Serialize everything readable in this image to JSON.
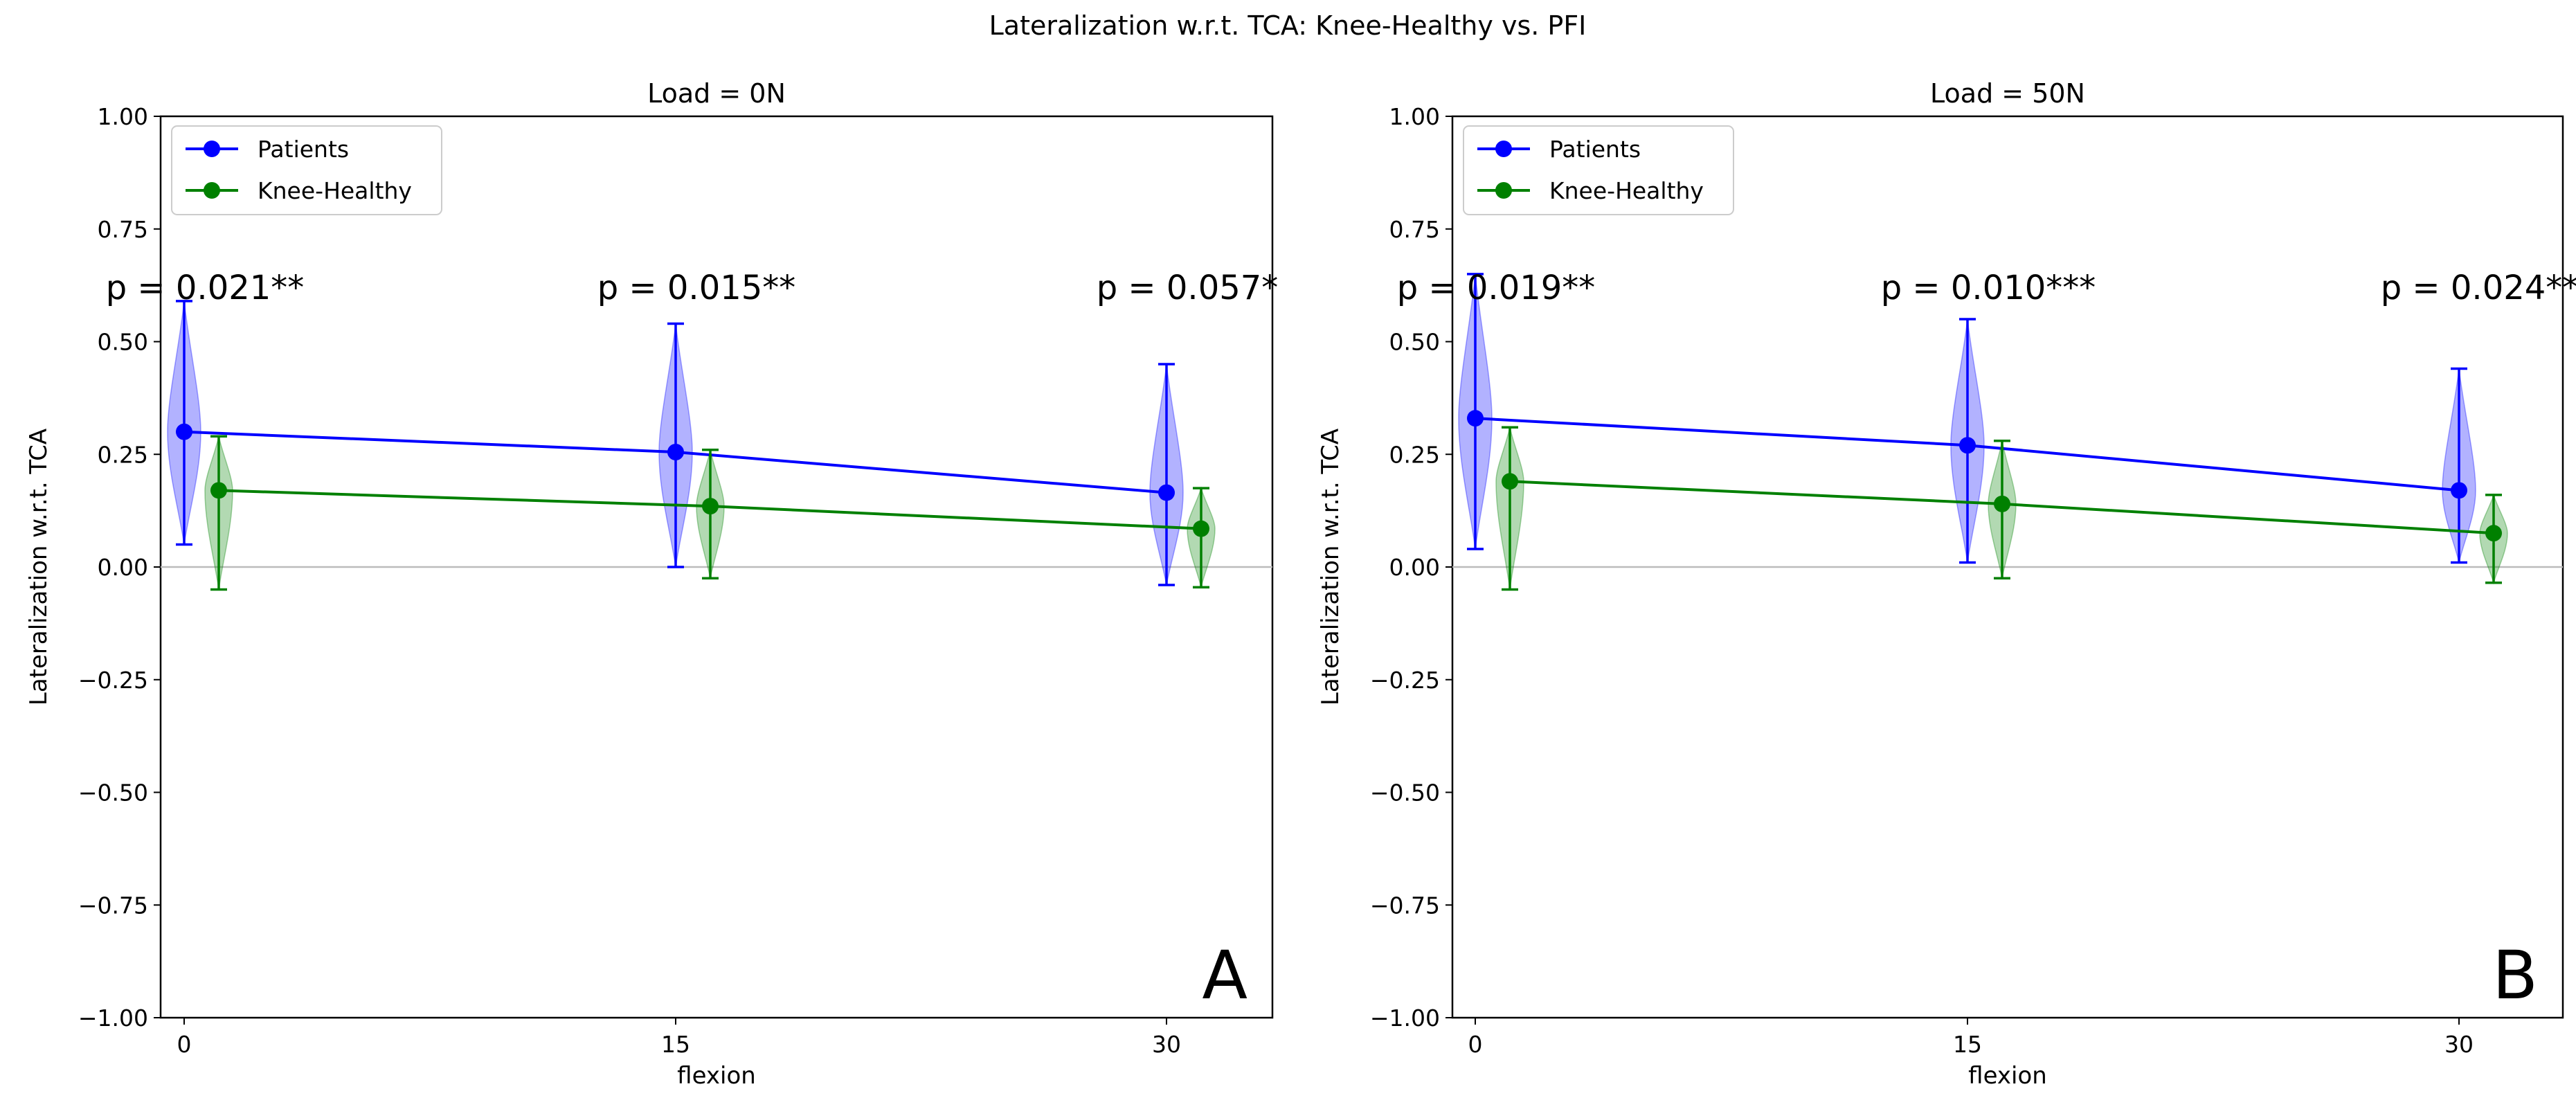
{
  "figure": {
    "suptitle": "Lateralization w.r.t. TCA: Knee-Healthy vs. PFI"
  },
  "colors": {
    "patients": "#0000ff",
    "healthy": "#008000",
    "zero_line": "#bbbbbb"
  },
  "chart_data": [
    {
      "type": "line",
      "panel_letter": "A",
      "title": "Load = 0N",
      "xlabel": "flexion",
      "ylabel": "Lateralization w.r.t. TCA",
      "ylim": [
        -1.0,
        1.0
      ],
      "yticks": [
        "1.00",
        "0.75",
        "0.50",
        "0.25",
        "0.00",
        "−0.25",
        "−0.50",
        "−0.75",
        "−1.00"
      ],
      "ytick_values": [
        1.0,
        0.75,
        0.5,
        0.25,
        0.0,
        -0.25,
        -0.5,
        -0.75,
        -1.0
      ],
      "x": [
        0,
        15,
        30
      ],
      "xticks": [
        "0",
        "15",
        "30"
      ],
      "legend": [
        "Patients",
        "Knee-Healthy"
      ],
      "legend_location": "upper-left",
      "p_values": [
        "p = 0.021**",
        "p = 0.015**",
        "p = 0.057*"
      ],
      "series": [
        {
          "name": "Patients",
          "means": [
            0.3,
            0.255,
            0.165
          ],
          "min": [
            0.05,
            0.0,
            -0.04
          ],
          "max": [
            0.59,
            0.54,
            0.45
          ]
        },
        {
          "name": "Knee-Healthy",
          "means": [
            0.17,
            0.135,
            0.085
          ],
          "min": [
            -0.05,
            -0.025,
            -0.045
          ],
          "max": [
            0.29,
            0.26,
            0.175
          ]
        }
      ]
    },
    {
      "type": "line",
      "panel_letter": "B",
      "title": "Load = 50N",
      "xlabel": "flexion",
      "ylabel": "Lateralization w.r.t. TCA",
      "ylim": [
        -1.0,
        1.0
      ],
      "yticks": [
        "1.00",
        "0.75",
        "0.50",
        "0.25",
        "0.00",
        "−0.25",
        "−0.50",
        "−0.75",
        "−1.00"
      ],
      "ytick_values": [
        1.0,
        0.75,
        0.5,
        0.25,
        0.0,
        -0.25,
        -0.5,
        -0.75,
        -1.0
      ],
      "x": [
        0,
        15,
        30
      ],
      "xticks": [
        "0",
        "15",
        "30"
      ],
      "legend": [
        "Patients",
        "Knee-Healthy"
      ],
      "legend_location": "upper-left",
      "p_values": [
        "p = 0.019**",
        "p = 0.010***",
        "p = 0.024**"
      ],
      "series": [
        {
          "name": "Patients",
          "means": [
            0.33,
            0.27,
            0.17
          ],
          "min": [
            0.04,
            0.01,
            0.01
          ],
          "max": [
            0.65,
            0.55,
            0.44
          ]
        },
        {
          "name": "Knee-Healthy",
          "means": [
            0.19,
            0.14,
            0.075
          ],
          "min": [
            -0.05,
            -0.025,
            -0.035
          ],
          "max": [
            0.31,
            0.28,
            0.16
          ]
        }
      ]
    }
  ]
}
